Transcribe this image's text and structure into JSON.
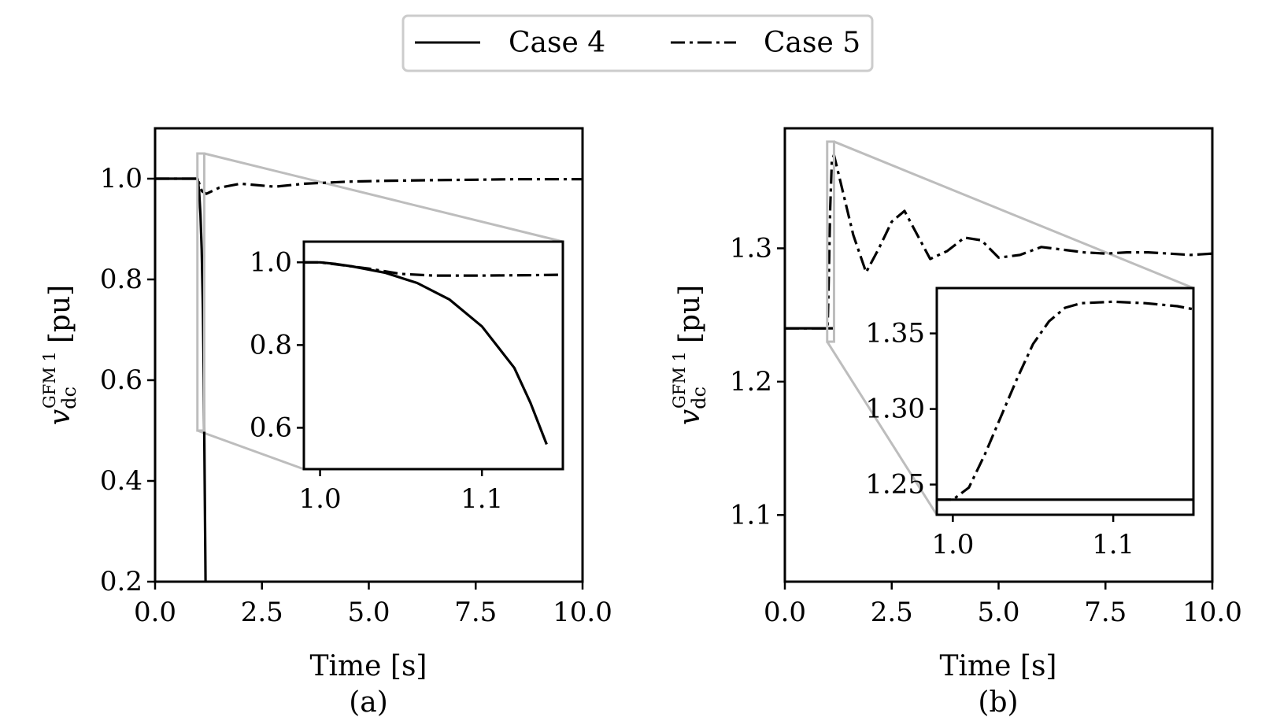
{
  "legend": {
    "entries": [
      {
        "label": "Case 4",
        "style": "solid"
      },
      {
        "label": "Case 5",
        "style": "dashdot"
      }
    ]
  },
  "chart_data": [
    {
      "type": "line",
      "panel_label": "(a)",
      "xlabel": "Time [s]",
      "ylabel": {
        "symbol": "v",
        "subscript": "dc",
        "superscript": "GFM 1",
        "unit": "[pu]"
      },
      "xlim": [
        0.0,
        10.0
      ],
      "ylim": [
        0.2,
        1.1
      ],
      "xticks": [
        0.0,
        2.5,
        5.0,
        7.5,
        10.0
      ],
      "xtick_labels": [
        "0.0",
        "2.5",
        "5.0",
        "7.5",
        "10.0"
      ],
      "yticks": [
        0.2,
        0.4,
        0.6,
        0.8,
        1.0
      ],
      "ytick_labels": [
        "0.2",
        "0.4",
        "0.6",
        "0.8",
        "1.0"
      ],
      "series": [
        {
          "name": "Case 4",
          "x": [
            0.0,
            0.995,
            1.0,
            1.03,
            1.06,
            1.09,
            1.12,
            1.14,
            1.16,
            1.18
          ],
          "y": [
            1.0,
            1.0,
            0.998,
            0.975,
            0.93,
            0.86,
            0.74,
            0.6,
            0.4,
            0.2
          ]
        },
        {
          "name": "Case 5",
          "x": [
            0.0,
            1.0,
            1.05,
            1.1,
            1.2,
            1.5,
            2.0,
            2.8,
            3.5,
            4.5,
            5.5,
            6.5,
            7.5,
            8.5,
            10.0
          ],
          "y": [
            1.0,
            1.0,
            0.985,
            0.975,
            0.97,
            0.982,
            0.99,
            0.984,
            0.99,
            0.994,
            0.996,
            0.997,
            0.998,
            0.999,
            0.999
          ]
        }
      ],
      "inset": {
        "xlim": [
          0.99,
          1.15
        ],
        "ylim": [
          0.5,
          1.05
        ],
        "xticks": [
          1.0,
          1.1
        ],
        "xtick_labels": [
          "1.0",
          "1.1"
        ],
        "yticks": [
          0.6,
          0.8,
          1.0
        ],
        "ytick_labels": [
          "0.6",
          "0.8",
          "1.0"
        ],
        "series": [
          {
            "name": "Case 4",
            "x": [
              0.99,
              1.0,
              1.01,
              1.02,
              1.04,
              1.06,
              1.08,
              1.1,
              1.12,
              1.13,
              1.14
            ],
            "y": [
              1.0,
              1.0,
              0.996,
              0.99,
              0.975,
              0.95,
              0.91,
              0.845,
              0.745,
              0.66,
              0.56
            ]
          },
          {
            "name": "Case 5",
            "x": [
              0.99,
              1.0,
              1.01,
              1.03,
              1.05,
              1.07,
              1.1,
              1.13,
              1.15
            ],
            "y": [
              1.0,
              1.0,
              0.995,
              0.985,
              0.972,
              0.968,
              0.968,
              0.969,
              0.97
            ]
          }
        ]
      }
    },
    {
      "type": "line",
      "panel_label": "(b)",
      "xlabel": "Time [s]",
      "ylabel": {
        "symbol": "v",
        "subscript": "dc",
        "superscript": "GFM 1",
        "unit": "[pu]"
      },
      "xlim": [
        0.0,
        10.0
      ],
      "ylim": [
        1.05,
        1.39
      ],
      "xticks": [
        0.0,
        2.5,
        5.0,
        7.5,
        10.0
      ],
      "xtick_labels": [
        "0.0",
        "2.5",
        "5.0",
        "7.5",
        "10.0"
      ],
      "yticks": [
        1.1,
        1.2,
        1.3
      ],
      "ytick_labels": [
        "1.1",
        "1.2",
        "1.3"
      ],
      "series": [
        {
          "name": "Case 4",
          "x": [
            0.0,
            1.17
          ],
          "y": [
            1.24,
            1.24
          ]
        },
        {
          "name": "Case 5",
          "x": [
            0.0,
            0.99,
            1.0,
            1.03,
            1.06,
            1.1,
            1.15,
            1.3,
            1.6,
            1.9,
            2.2,
            2.5,
            2.8,
            3.1,
            3.4,
            3.8,
            4.2,
            4.6,
            5.0,
            5.5,
            6.0,
            6.5,
            7.0,
            7.5,
            8.0,
            8.5,
            9.0,
            9.5,
            10.0
          ],
          "y": [
            1.24,
            1.24,
            1.24,
            1.28,
            1.33,
            1.366,
            1.37,
            1.35,
            1.31,
            1.282,
            1.3,
            1.32,
            1.328,
            1.31,
            1.292,
            1.298,
            1.308,
            1.306,
            1.293,
            1.295,
            1.301,
            1.299,
            1.297,
            1.296,
            1.297,
            1.297,
            1.296,
            1.295,
            1.296
          ]
        }
      ],
      "inset": {
        "xlim": [
          0.99,
          1.15
        ],
        "ylim": [
          1.23,
          1.38
        ],
        "xticks": [
          1.0,
          1.1
        ],
        "xtick_labels": [
          "1.0",
          "1.1"
        ],
        "yticks": [
          1.25,
          1.3,
          1.35
        ],
        "ytick_labels": [
          "1.25",
          "1.30",
          "1.35"
        ],
        "series": [
          {
            "name": "Case 4",
            "x": [
              0.99,
              1.15
            ],
            "y": [
              1.24,
              1.24
            ]
          },
          {
            "name": "Case 5",
            "x": [
              0.99,
              1.0,
              1.01,
              1.02,
              1.03,
              1.04,
              1.05,
              1.06,
              1.07,
              1.08,
              1.1,
              1.12,
              1.14,
              1.15
            ],
            "y": [
              1.24,
              1.24,
              1.248,
              1.27,
              1.295,
              1.32,
              1.343,
              1.358,
              1.367,
              1.37,
              1.371,
              1.37,
              1.368,
              1.366
            ]
          }
        ]
      }
    }
  ]
}
